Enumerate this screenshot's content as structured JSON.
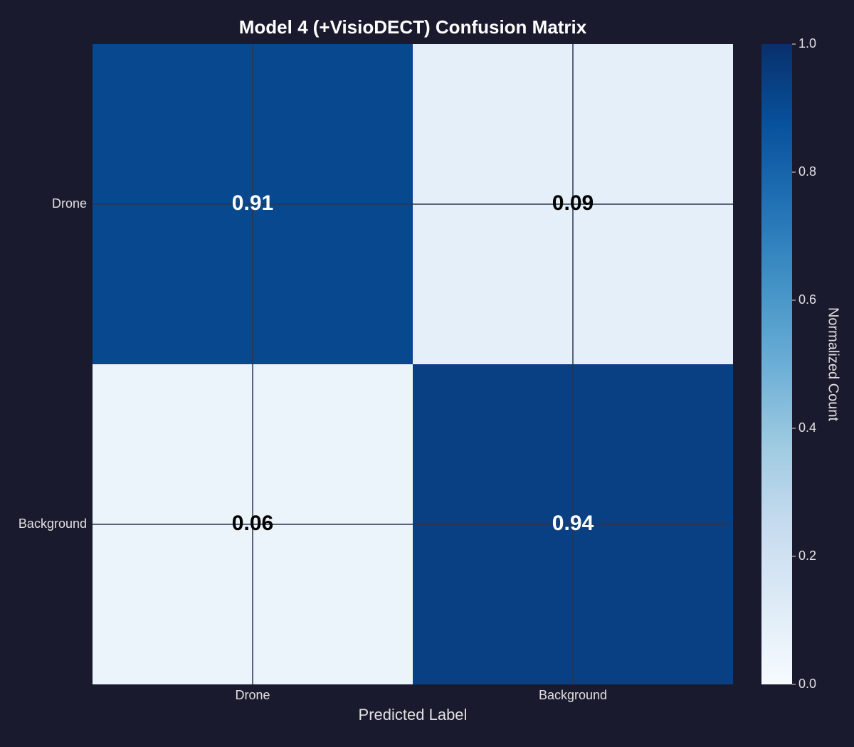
{
  "chart_data": {
    "type": "heatmap",
    "title": "Model 4 (+VisioDECT) Confusion Matrix",
    "x_categories": [
      "Drone",
      "Background"
    ],
    "y_categories": [
      "Drone",
      "Background"
    ],
    "values": [
      [
        0.91,
        0.09
      ],
      [
        0.06,
        0.94
      ]
    ],
    "xlabel": "Predicted Label",
    "colorbar_label": "Normalized Count",
    "colormap": "Blues",
    "clim": [
      0,
      1
    ],
    "colorbar_ticks": [
      {
        "value": 0,
        "label": "0.0"
      },
      0.2,
      0.4,
      0.6,
      0.8,
      {
        "value": 1,
        "label": "1.0"
      }
    ],
    "grid": true
  }
}
